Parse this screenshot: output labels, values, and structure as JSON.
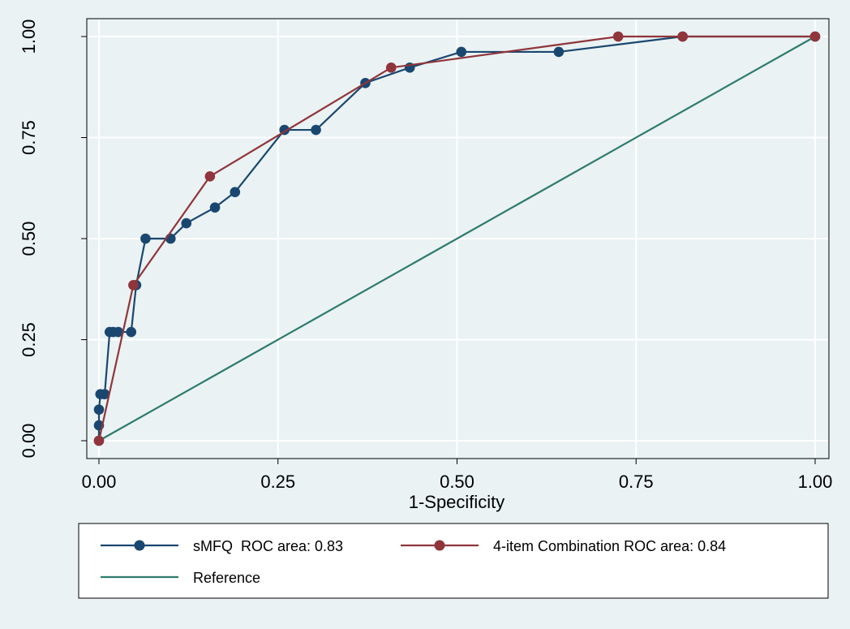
{
  "chart_data": {
    "type": "line",
    "title": "",
    "xlabel": "1-Specificity",
    "ylabel": "",
    "xlim": [
      0,
      1
    ],
    "ylim": [
      0,
      1
    ],
    "xticks": [
      "0.00",
      "0.25",
      "0.50",
      "0.75",
      "1.00"
    ],
    "yticks": [
      "0.00",
      "0.25",
      "0.50",
      "0.75",
      "1.00"
    ],
    "grid": true,
    "legend": "bottom",
    "series": [
      {
        "name": "sMFQ  ROC area: 0.83",
        "color": "#1a476f",
        "markers": true,
        "x": [
          0.0,
          0.0,
          0.0,
          0.002,
          0.008,
          0.015,
          0.02,
          0.027,
          0.045,
          0.052,
          0.065,
          0.1,
          0.122,
          0.162,
          0.19,
          0.259,
          0.303,
          0.372,
          0.434,
          0.506,
          0.642,
          0.815,
          1.0
        ],
        "y": [
          0.0,
          0.038,
          0.077,
          0.115,
          0.115,
          0.269,
          0.269,
          0.269,
          0.269,
          0.385,
          0.5,
          0.5,
          0.538,
          0.577,
          0.615,
          0.769,
          0.769,
          0.885,
          0.923,
          0.962,
          0.962,
          1.0,
          1.0
        ]
      },
      {
        "name": "4-item Combination ROC area: 0.84",
        "color": "#90353b",
        "markers": true,
        "x": [
          0.0,
          0.048,
          0.155,
          0.408,
          0.725,
          0.815,
          1.0
        ],
        "y": [
          0.0,
          0.385,
          0.654,
          0.923,
          1.0,
          1.0,
          1.0
        ]
      },
      {
        "name": "Reference",
        "color": "#2e7b6e",
        "markers": false,
        "x": [
          0,
          1
        ],
        "y": [
          0,
          1
        ]
      }
    ]
  }
}
